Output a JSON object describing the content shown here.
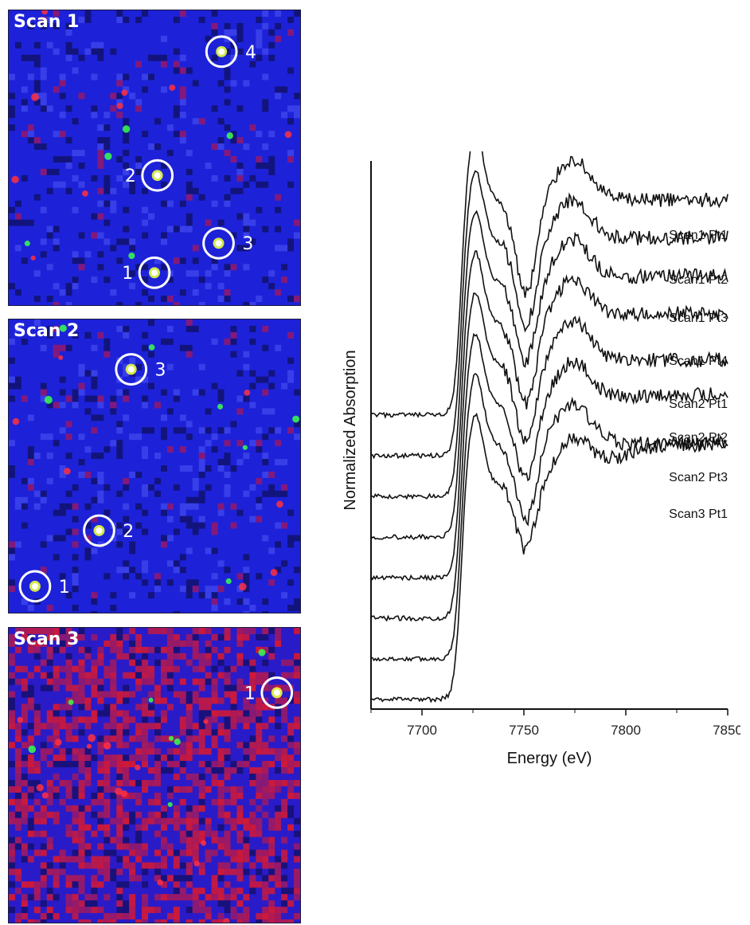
{
  "colors": {
    "map_base_blue": "#1d22d8",
    "map_base_red": "#d01a2a",
    "hotspot_green": "#3aff4a",
    "circle": "#ffffff",
    "trace": "#111111"
  },
  "maps": [
    {
      "title": "Scan 1",
      "points": [
        {
          "label": "1",
          "fx": 0.5,
          "fy": 0.89
        },
        {
          "label": "2",
          "fx": 0.51,
          "fy": 0.56
        },
        {
          "label": "3",
          "fx": 0.72,
          "fy": 0.79
        },
        {
          "label": "4",
          "fx": 0.73,
          "fy": 0.14
        }
      ]
    },
    {
      "title": "Scan 2",
      "points": [
        {
          "label": "1",
          "fx": 0.09,
          "fy": 0.91
        },
        {
          "label": "2",
          "fx": 0.31,
          "fy": 0.72
        },
        {
          "label": "3",
          "fx": 0.42,
          "fy": 0.17
        }
      ]
    },
    {
      "title": "Scan 3",
      "points": [
        {
          "label": "1",
          "fx": 0.92,
          "fy": 0.22
        }
      ]
    }
  ],
  "chart_data": {
    "type": "line",
    "xlabel": "Energy (eV)",
    "ylabel": "Normalized Absorption",
    "xlim": [
      7675,
      7850
    ],
    "xticks": [
      7700,
      7750,
      7800,
      7850
    ],
    "yticks_shown": false,
    "series": [
      {
        "name": "Scan1 Pt1",
        "offset": 7,
        "pre": 0.0,
        "peak": 1.0,
        "min": 0.42,
        "post": 0.55
      },
      {
        "name": "Scan1 Pt2",
        "offset": 6,
        "pre": 0.0,
        "peak": 1.0,
        "min": 0.45,
        "post": 0.56
      },
      {
        "name": "Scan1 Pt3",
        "offset": 5,
        "pre": 0.0,
        "peak": 1.0,
        "min": 0.47,
        "post": 0.57
      },
      {
        "name": "Scan1 Pt4",
        "offset": 4,
        "pre": 0.0,
        "peak": 1.0,
        "min": 0.46,
        "post": 0.58
      },
      {
        "name": "Scan2 Pt1",
        "offset": 3,
        "pre": 0.0,
        "peak": 1.0,
        "min": 0.47,
        "post": 0.56
      },
      {
        "name": "Scan2 Pt2",
        "offset": 2,
        "pre": 0.0,
        "peak": 1.0,
        "min": 0.48,
        "post": 0.58
      },
      {
        "name": "Scan2 Pt3",
        "offset": 1,
        "pre": 0.0,
        "peak": 1.0,
        "min": 0.48,
        "post": 0.55
      },
      {
        "name": "Scan3 Pt1",
        "offset": 0,
        "pre": 0.0,
        "peak": 1.0,
        "min": 0.52,
        "post": 0.69
      }
    ]
  }
}
